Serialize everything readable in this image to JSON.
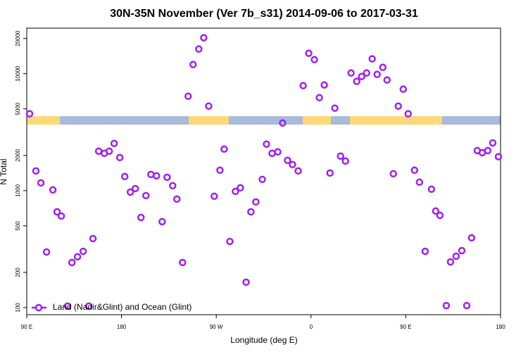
{
  "chart_data": {
    "type": "scatter",
    "title": "30N-35N November (Ver 7b_s31)   2014-09-06 to 2017-03-31",
    "xlabel": "Longitude (deg E)",
    "ylabel": "N Total",
    "xlim": [
      90,
      540
    ],
    "xticks": [
      {
        "value": 90,
        "label": "90 E"
      },
      180,
      {
        "value": 270,
        "label": "90 W"
      },
      {
        "value": 360,
        "label": "0"
      },
      {
        "value": 450,
        "label": "90 E"
      },
      {
        "value": 540,
        "label": "180"
      }
    ],
    "ylim": [
      87,
      24500
    ],
    "yticks": [
      100,
      200,
      500,
      1000,
      2000,
      5000,
      10000,
      20000
    ],
    "log_y": true,
    "legend": "bottom-left",
    "series": [
      {
        "name": "Land (Nadir&Glint) and Ocean (Glint)",
        "color": "#a020f0",
        "x": [
          92.7,
          98.7,
          103.4,
          108.8,
          114.8,
          118.8,
          122.8,
          128.8,
          132.9,
          138.2,
          143.6,
          148.9,
          152.9,
          158.3,
          163.7,
          168.3,
          173.0,
          178.4,
          183.1,
          188.4,
          193.1,
          198.5,
          203.2,
          207.9,
          213.2,
          218.6,
          223.3,
          228.6,
          232.6,
          238.0,
          243.3,
          248.0,
          253.4,
          258.1,
          262.8,
          268.1,
          273.5,
          277.5,
          282.9,
          288.2,
          292.9,
          298.3,
          302.9,
          307.6,
          313.7,
          317.7,
          323.0,
          328.4,
          333.0,
          337.7,
          342.4,
          347.8,
          352.5,
          357.8,
          363.2,
          367.9,
          372.6,
          378.0,
          382.6,
          388.0,
          392.7,
          398.0,
          403.4,
          408.1,
          412.8,
          418.1,
          422.8,
          428.2,
          432.2,
          438.2,
          442.9,
          447.6,
          452.3,
          458.3,
          463.0,
          468.4,
          474.4,
          478.4,
          482.4,
          488.5,
          492.5,
          497.8,
          503.2,
          507.9,
          512.5,
          517.9,
          522.6,
          527.9,
          532.6,
          538.0
        ],
        "values": [
          4540,
          1475,
          1165,
          299,
          1014,
          659,
          607,
          103,
          243,
          272,
          303,
          103,
          389,
          2175,
          2086,
          2175,
          2533,
          1919,
          1320,
          972,
          1042,
          590,
          907,
          1376,
          1339,
          543,
          1301,
          1102,
          847,
          243,
          6414,
          11970,
          16250,
          20290,
          5283,
          895,
          1495,
          2266,
          368,
          986,
          1057,
          165,
          659,
          801,
          1248,
          2499,
          2086,
          2144,
          3787,
          1816,
          1671,
          1475,
          7900,
          14950,
          13190,
          6240,
          8010,
          1415,
          5070,
          1973,
          1791,
          10140,
          8590,
          9460,
          10140,
          13390,
          9860,
          11330,
          8830,
          1395,
          5283,
          7370,
          4540,
          1495,
          1181,
          303,
          1028,
          669,
          615,
          104,
          246,
          275,
          307,
          104,
          395,
          2200,
          2110,
          2200,
          2560,
          1950
        ]
      }
    ]
  }
}
